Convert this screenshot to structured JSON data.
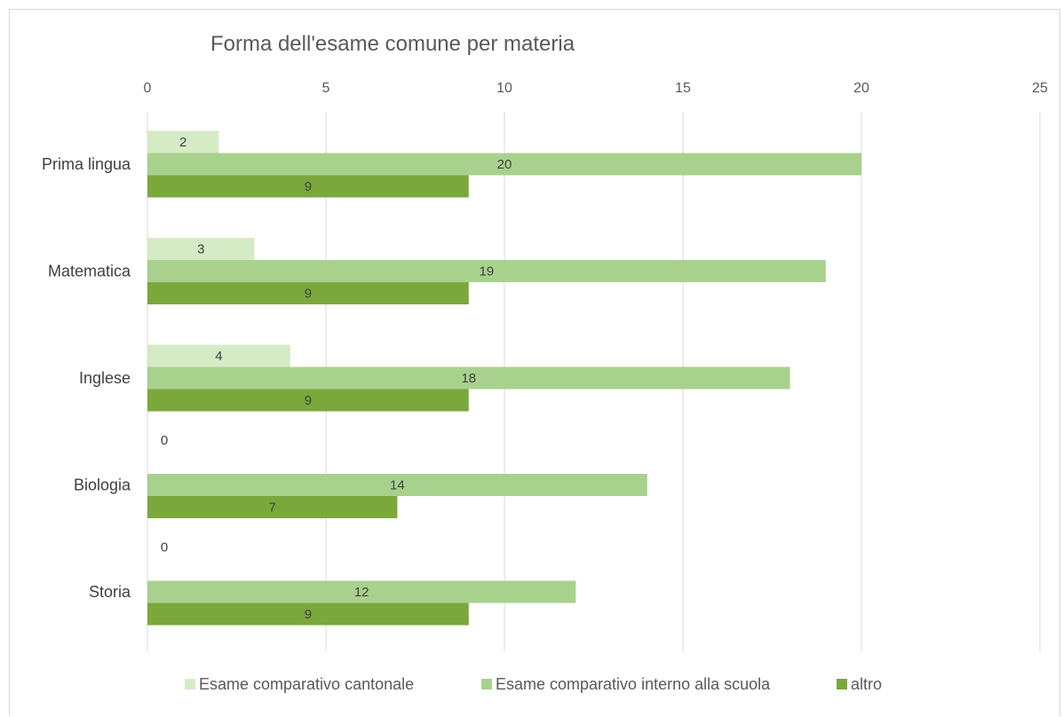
{
  "chart_data": {
    "type": "bar",
    "orientation": "horizontal",
    "title": "Forma dell'esame comune per materia",
    "categories": [
      "Prima lingua",
      "Matematica",
      "Inglese",
      "Biologia",
      "Storia"
    ],
    "series": [
      {
        "name": "Esame comparativo cantonale",
        "values": [
          2,
          3,
          4,
          0,
          0
        ],
        "color": "#d5ebc6"
      },
      {
        "name": "Esame comparativo interno alla scuola",
        "values": [
          20,
          19,
          18,
          14,
          12
        ],
        "color": "#a9d18e"
      },
      {
        "name": "altro",
        "values": [
          9,
          9,
          9,
          7,
          9
        ],
        "color": "#7aa83c"
      }
    ],
    "xlim": [
      0,
      25
    ],
    "xticks": [
      0,
      5,
      10,
      15,
      20,
      25
    ],
    "x_axis_position": "top",
    "grid": true,
    "gridline_color": "#d9d9d9",
    "data_labels": true,
    "legend_position": "bottom"
  }
}
